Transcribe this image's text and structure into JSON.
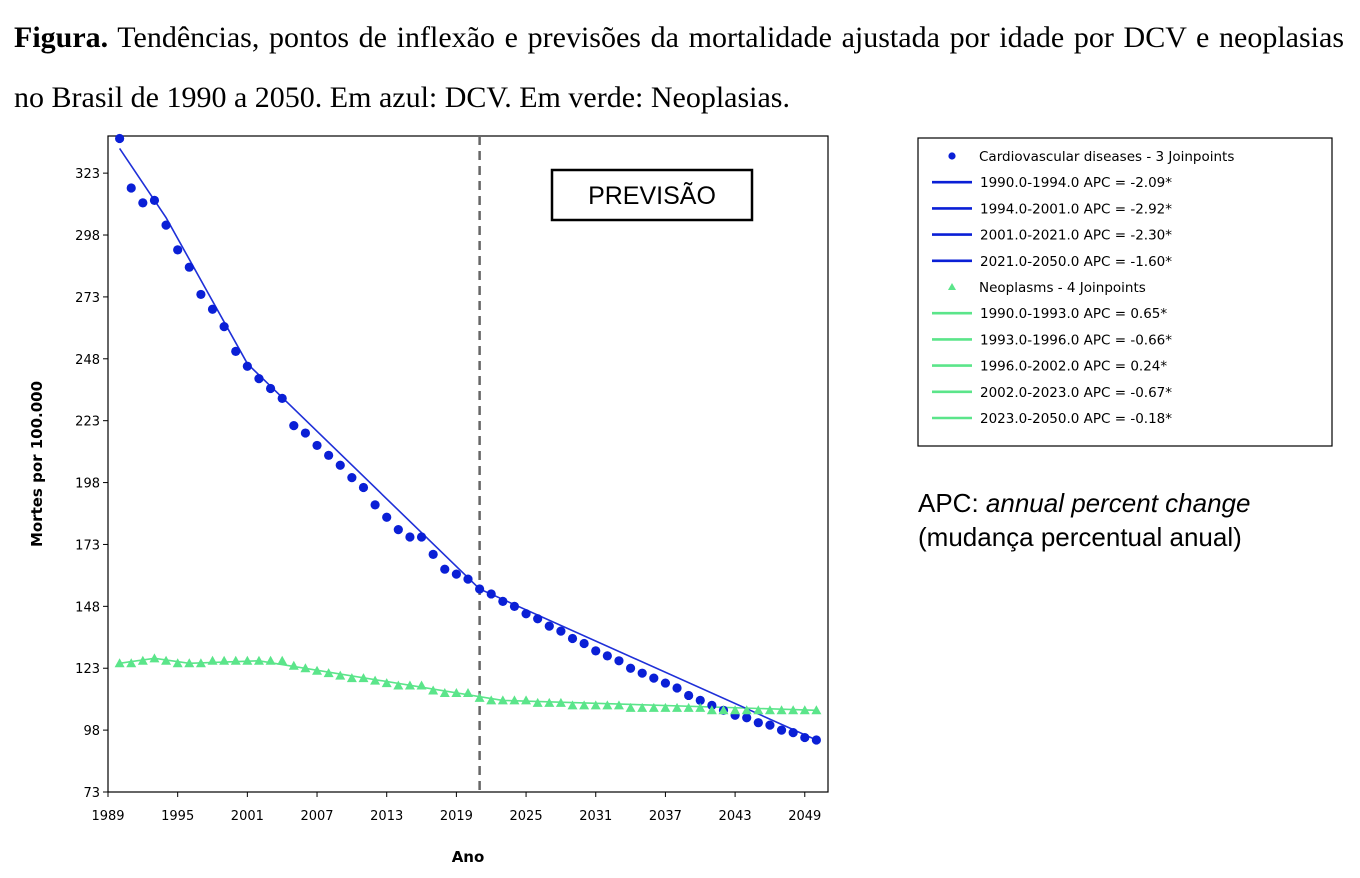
{
  "caption": {
    "bold": "Figura.",
    "text": " Tendências, pontos de inflexão e previsões da mortalidade ajustada por idade por DCV e neoplasias no Brasil de 1990 a 2050. Em azul: DCV. Em verde: Neoplasias."
  },
  "chart_data": {
    "type": "scatter",
    "xlabel": "Ano",
    "ylabel": "Mortes por 100.000",
    "xlim": [
      1989,
      2051
    ],
    "ylim": [
      73,
      338
    ],
    "x_ticks": [
      1989,
      1995,
      2001,
      2007,
      2013,
      2019,
      2025,
      2031,
      2037,
      2043,
      2049
    ],
    "y_ticks": [
      73,
      98,
      123,
      148,
      173,
      198,
      223,
      248,
      273,
      298,
      323
    ],
    "grid": false,
    "forecast_divider_x": 2021,
    "annotation": "PREVISÃO",
    "colors": {
      "cvd": "#0a1fd6",
      "cvd_line": "#1f30d8",
      "neo": "#5be58a",
      "neo_line": "#5be58a",
      "divider": "#666666"
    },
    "series": [
      {
        "key": "cvd",
        "name": "Cardiovascular diseases - 3 Joinpoints",
        "marker": "circle",
        "x": [
          1990,
          1991,
          1992,
          1993,
          1994,
          1995,
          1996,
          1997,
          1998,
          1999,
          2000,
          2001,
          2002,
          2003,
          2004,
          2005,
          2006,
          2007,
          2008,
          2009,
          2010,
          2011,
          2012,
          2013,
          2014,
          2015,
          2016,
          2017,
          2018,
          2019,
          2020,
          2021,
          2022,
          2023,
          2024,
          2025,
          2026,
          2027,
          2028,
          2029,
          2030,
          2031,
          2032,
          2033,
          2034,
          2035,
          2036,
          2037,
          2038,
          2039,
          2040,
          2041,
          2042,
          2043,
          2044,
          2045,
          2046,
          2047,
          2048,
          2049,
          2050
        ],
        "y": [
          337,
          317,
          311,
          312,
          302,
          292,
          285,
          274,
          268,
          261,
          251,
          245,
          240,
          236,
          232,
          221,
          218,
          213,
          209,
          205,
          200,
          196,
          189,
          184,
          179,
          176,
          176,
          169,
          163,
          161,
          159,
          155,
          153,
          150,
          148,
          145,
          143,
          140,
          138,
          135,
          133,
          130,
          128,
          126,
          123,
          121,
          119,
          117,
          115,
          112,
          110,
          108,
          106,
          104,
          103,
          101,
          100,
          98,
          97,
          95,
          94
        ]
      },
      {
        "key": "neo",
        "name": "Neoplasms - 4 Joinpoints",
        "marker": "triangle",
        "x": [
          1990,
          1991,
          1992,
          1993,
          1994,
          1995,
          1996,
          1997,
          1998,
          1999,
          2000,
          2001,
          2002,
          2003,
          2004,
          2005,
          2006,
          2007,
          2008,
          2009,
          2010,
          2011,
          2012,
          2013,
          2014,
          2015,
          2016,
          2017,
          2018,
          2019,
          2020,
          2021,
          2022,
          2023,
          2024,
          2025,
          2026,
          2027,
          2028,
          2029,
          2030,
          2031,
          2032,
          2033,
          2034,
          2035,
          2036,
          2037,
          2038,
          2039,
          2040,
          2041,
          2042,
          2043,
          2044,
          2045,
          2046,
          2047,
          2048,
          2049,
          2050
        ],
        "y": [
          125,
          125,
          126,
          127,
          126,
          125,
          125,
          125,
          126,
          126,
          126,
          126,
          126,
          126,
          126,
          124,
          123,
          122,
          121,
          120,
          119,
          119,
          118,
          117,
          116,
          116,
          116,
          114,
          113,
          113,
          113,
          111,
          110,
          110,
          110,
          110,
          109,
          109,
          109,
          108,
          108,
          108,
          108,
          108,
          107,
          107,
          107,
          107,
          107,
          107,
          107,
          106,
          106,
          106,
          106,
          106,
          106,
          106,
          106,
          106,
          106
        ]
      }
    ],
    "fit_segments": {
      "cvd": [
        [
          1990,
          333
        ],
        [
          1994,
          305
        ],
        [
          2001,
          246
        ],
        [
          2021,
          155
        ],
        [
          2050,
          94
        ]
      ],
      "neo": [
        [
          1990,
          125
        ],
        [
          1993,
          127
        ],
        [
          1996,
          125
        ],
        [
          2002,
          126
        ],
        [
          2023,
          110
        ],
        [
          2050,
          106
        ]
      ]
    },
    "legend": [
      {
        "type": "dot",
        "series": "cvd",
        "label": "Cardiovascular diseases - 3 Joinpoints"
      },
      {
        "type": "line",
        "series": "cvd",
        "label": "1990.0-1994.0 APC  =  -2.09*"
      },
      {
        "type": "line",
        "series": "cvd",
        "label": "1994.0-2001.0 APC  =  -2.92*"
      },
      {
        "type": "line",
        "series": "cvd",
        "label": "2001.0-2021.0 APC  =  -2.30*"
      },
      {
        "type": "line",
        "series": "cvd",
        "label": "2021.0-2050.0 APC  =  -1.60*"
      },
      {
        "type": "triangle",
        "series": "neo",
        "label": "Neoplasms - 4 Joinpoints"
      },
      {
        "type": "line",
        "series": "neo",
        "label": "1990.0-1993.0 APC  =  0.65*"
      },
      {
        "type": "line",
        "series": "neo",
        "label": "1993.0-1996.0 APC  =  -0.66*"
      },
      {
        "type": "line",
        "series": "neo",
        "label": "1996.0-2002.0 APC  =  0.24*"
      },
      {
        "type": "line",
        "series": "neo",
        "label": "2002.0-2023.0 APC  =  -0.67*"
      },
      {
        "type": "line",
        "series": "neo",
        "label": "2023.0-2050.0 APC  =  -0.18*"
      }
    ]
  },
  "note": {
    "prefix": "APC: ",
    "italic": "annual percent change",
    "line2": "(mudança percentual anual)"
  }
}
